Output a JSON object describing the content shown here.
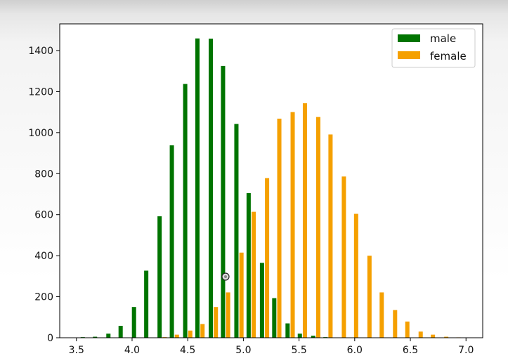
{
  "colors": {
    "male": "#007400",
    "female": "#f5a000",
    "axis": "#000000"
  },
  "chart_data": {
    "type": "bar",
    "title": "",
    "xlabel": "",
    "ylabel": "",
    "xlim": [
      3.35,
      7.15
    ],
    "ylim": [
      0,
      1530
    ],
    "grid": false,
    "legend_position": "upper right",
    "x_ticks": [
      3.5,
      4.0,
      4.5,
      5.0,
      5.5,
      6.0,
      6.5,
      7.0
    ],
    "x_tick_labels": [
      "3.5",
      "4.0",
      "4.5",
      "5.0",
      "5.5",
      "6.0",
      "6.5",
      "7.0"
    ],
    "y_ticks": [
      0,
      200,
      400,
      600,
      800,
      1000,
      1200,
      1400
    ],
    "y_tick_labels": [
      "0",
      "200",
      "400",
      "600",
      "800",
      "1000",
      "1200",
      "1400"
    ],
    "bin_centers": [
      3.58,
      3.69,
      3.81,
      3.92,
      4.04,
      4.15,
      4.27,
      4.38,
      4.5,
      4.61,
      4.73,
      4.84,
      4.96,
      5.07,
      5.19,
      5.3,
      5.42,
      5.53,
      5.65,
      5.76,
      5.88,
      5.99,
      6.11,
      6.22,
      6.34,
      6.45,
      6.57,
      6.68,
      6.8,
      6.91
    ],
    "series": [
      {
        "name": "male",
        "values": [
          3,
          5,
          20,
          58,
          150,
          327,
          592,
          938,
          1237,
          1459,
          1458,
          1325,
          1042,
          705,
          365,
          193,
          70,
          20,
          10,
          3,
          0,
          0,
          0,
          0,
          0,
          0,
          0,
          0,
          0,
          0
        ]
      },
      {
        "name": "female",
        "values": [
          0,
          0,
          0,
          0,
          0,
          0,
          3,
          15,
          35,
          67,
          150,
          221,
          415,
          614,
          778,
          1068,
          1100,
          1143,
          1076,
          991,
          786,
          604,
          400,
          221,
          135,
          79,
          30,
          15,
          5,
          2
        ]
      }
    ]
  }
}
